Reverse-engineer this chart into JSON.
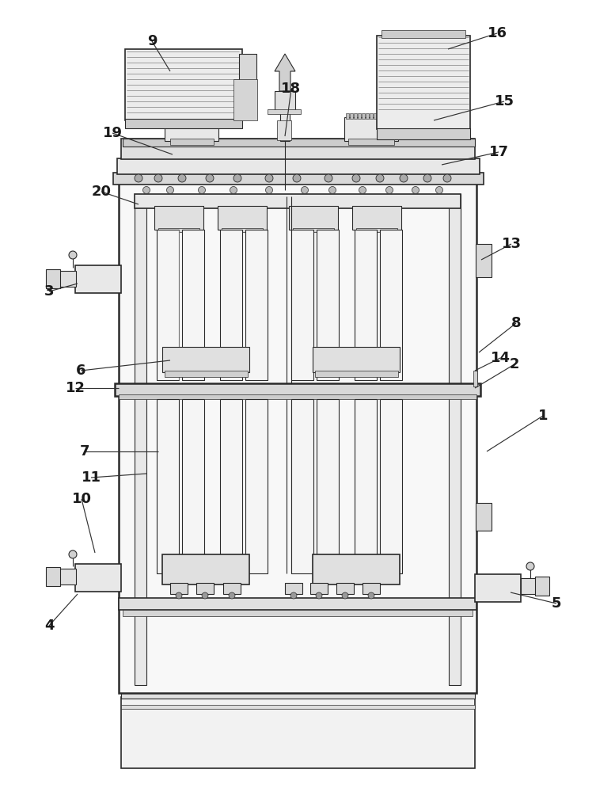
{
  "bg": "#ffffff",
  "lc": "#2a2a2a",
  "fc0": "#ffffff",
  "fc1": "#f0f0f0",
  "fc2": "#e0e0e0",
  "fc3": "#d0d0d0",
  "fc4": "#c0c0c0",
  "fc5": "#b0b0b0",
  "figw": 7.53,
  "figh": 10.0,
  "dpi": 100,
  "labels": [
    [
      1,
      686,
      525,
      615,
      570
    ],
    [
      2,
      650,
      460,
      600,
      490
    ],
    [
      3,
      62,
      368,
      98,
      358
    ],
    [
      4,
      62,
      790,
      98,
      750
    ],
    [
      5,
      703,
      762,
      645,
      748
    ],
    [
      6,
      102,
      468,
      215,
      455
    ],
    [
      7,
      107,
      570,
      200,
      570
    ],
    [
      8,
      652,
      408,
      605,
      445
    ],
    [
      9,
      192,
      52,
      215,
      90
    ],
    [
      10,
      103,
      630,
      120,
      698
    ],
    [
      11,
      115,
      603,
      185,
      598
    ],
    [
      12,
      95,
      490,
      150,
      490
    ],
    [
      13,
      646,
      308,
      608,
      328
    ],
    [
      14,
      632,
      452,
      600,
      468
    ],
    [
      15,
      637,
      128,
      548,
      152
    ],
    [
      16,
      628,
      42,
      566,
      62
    ],
    [
      17,
      630,
      192,
      558,
      208
    ],
    [
      18,
      368,
      112,
      360,
      172
    ],
    [
      19,
      142,
      168,
      218,
      195
    ],
    [
      20,
      128,
      242,
      175,
      258
    ]
  ]
}
